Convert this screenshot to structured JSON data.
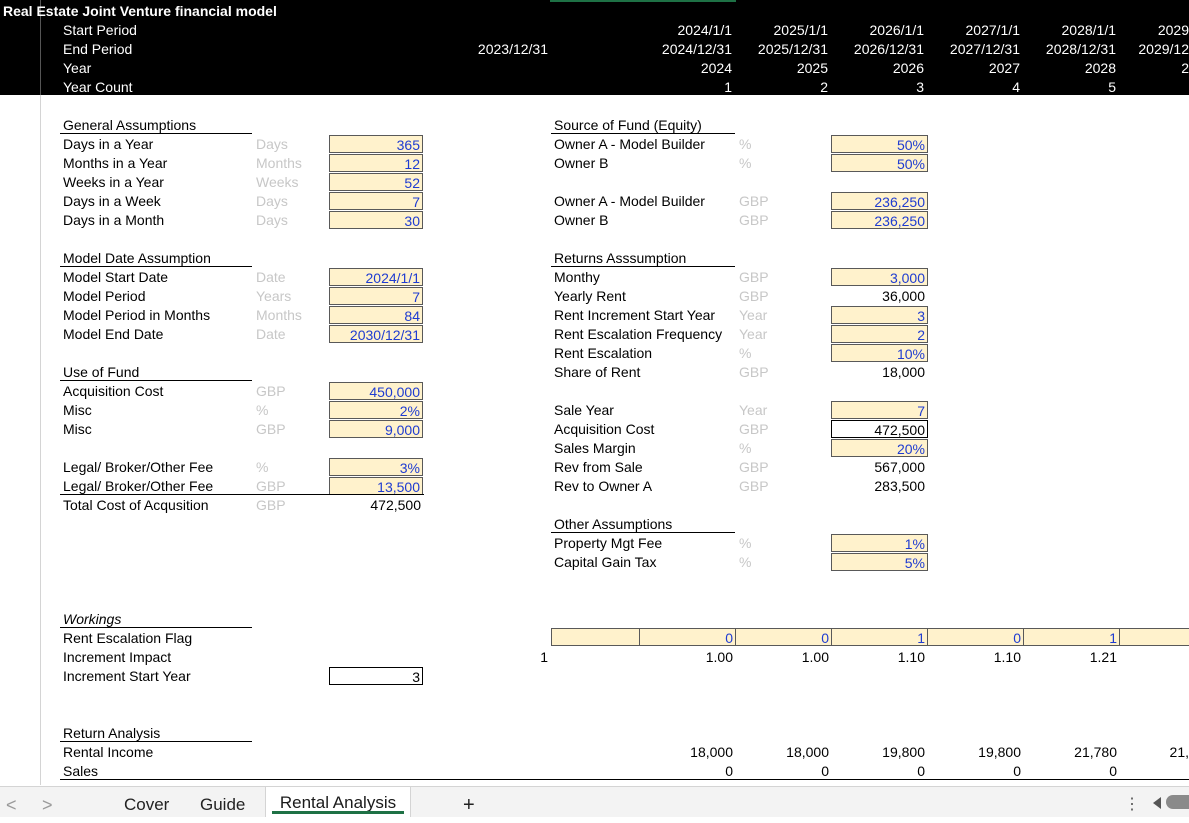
{
  "header": {
    "title": "Real Estate Joint Venture financial model",
    "row_labels": [
      "Start Period",
      "End Period",
      "Year",
      "Year Count"
    ],
    "prior_end": "2023/12/31",
    "columns": [
      {
        "start": "2024/1/1",
        "end": "2024/12/31",
        "year": "2024",
        "count": "1"
      },
      {
        "start": "2025/1/1",
        "end": "2025/12/31",
        "year": "2025",
        "count": "2"
      },
      {
        "start": "2026/1/1",
        "end": "2026/12/31",
        "year": "2026",
        "count": "3"
      },
      {
        "start": "2027/1/1",
        "end": "2027/12/31",
        "year": "2027",
        "count": "4"
      },
      {
        "start": "2028/1/1",
        "end": "2028/12/31",
        "year": "2028",
        "count": "5"
      },
      {
        "start": "2029",
        "end": "2029/12",
        "year": "2",
        "count": ""
      }
    ]
  },
  "general": {
    "title": "General Assumptions",
    "rows": [
      {
        "label": "Days in a Year",
        "unit": "Days",
        "value": "365"
      },
      {
        "label": "Months in a Year",
        "unit": "Months",
        "value": "12"
      },
      {
        "label": "Weeks in a Year",
        "unit": "Weeks",
        "value": "52"
      },
      {
        "label": "Days in a Week",
        "unit": "Days",
        "value": "7"
      },
      {
        "label": "Days in a Month",
        "unit": "Days",
        "value": "30"
      }
    ]
  },
  "model_date": {
    "title": "Model Date Assumption",
    "rows": [
      {
        "label": "Model Start Date",
        "unit": "Date",
        "value": "2024/1/1"
      },
      {
        "label": "Model Period",
        "unit": "Years",
        "value": "7"
      },
      {
        "label": "Model Period in Months",
        "unit": "Months",
        "value": "84"
      },
      {
        "label": "Model End Date",
        "unit": "Date",
        "value": "2030/12/31"
      }
    ]
  },
  "use_of_fund": {
    "title": "Use of Fund",
    "rows": [
      {
        "label": "Acquisition Cost",
        "unit": "GBP",
        "value": "450,000"
      },
      {
        "label": "Misc",
        "unit": "%",
        "value": "2%"
      },
      {
        "label": "Misc",
        "unit": "GBP",
        "value": "9,000"
      },
      {
        "label": "Legal/ Broker/Other Fee",
        "unit": "%",
        "value": "3%"
      },
      {
        "label": "Legal/ Broker/Other Fee",
        "unit": "GBP",
        "value": "13,500"
      },
      {
        "label": "Total Cost of Acqusition",
        "unit": "GBP",
        "value": "472,500"
      }
    ]
  },
  "source_of_fund": {
    "title": "Source of Fund (Equity)",
    "rows": [
      {
        "label": "Owner A - Model Builder",
        "unit": "%",
        "value": "50%"
      },
      {
        "label": "Owner B",
        "unit": "%",
        "value": "50%"
      },
      {
        "label": "Owner A - Model Builder",
        "unit": "GBP",
        "value": "236,250"
      },
      {
        "label": "Owner B",
        "unit": "GBP",
        "value": "236,250"
      }
    ]
  },
  "returns": {
    "title": "Returns Asssumption",
    "rows": [
      {
        "label": "Monthy",
        "unit": "GBP",
        "value": "3,000"
      },
      {
        "label": "Yearly Rent",
        "unit": "GBP",
        "value": "36,000"
      },
      {
        "label": "Rent Increment Start Year",
        "unit": "Year",
        "value": "3"
      },
      {
        "label": "Rent Escalation Frequency",
        "unit": "Year",
        "value": "2"
      },
      {
        "label": "Rent Escalation",
        "unit": "%",
        "value": "10%"
      },
      {
        "label": "Share of Rent",
        "unit": "GBP",
        "value": "18,000"
      },
      {
        "label": "Sale Year",
        "unit": "Year",
        "value": "7"
      },
      {
        "label": "Acquisition Cost",
        "unit": "GBP",
        "value": "472,500"
      },
      {
        "label": "Sales Margin",
        "unit": "%",
        "value": "20%"
      },
      {
        "label": "Rev from Sale",
        "unit": "GBP",
        "value": "567,000"
      },
      {
        "label": "Rev to Owner A",
        "unit": "GBP",
        "value": "283,500"
      }
    ]
  },
  "other": {
    "title": "Other Assumptions",
    "rows": [
      {
        "label": "Property Mgt Fee",
        "unit": "%",
        "value": "1%"
      },
      {
        "label": "Capital Gain Tax",
        "unit": "%",
        "value": "5%"
      }
    ]
  },
  "workings": {
    "title": "Workings",
    "rent_escalation_flag": {
      "label": "Rent Escalation Flag",
      "values": [
        "0",
        "0",
        "1",
        "0",
        "1"
      ]
    },
    "increment_impact": {
      "label": "Increment Impact",
      "prior": "1",
      "values": [
        "1.00",
        "1.00",
        "1.10",
        "1.10",
        "1.21"
      ]
    },
    "increment_start_year": {
      "label": "Increment Start Year",
      "value": "3"
    }
  },
  "return_analysis": {
    "title": "Return Analysis",
    "rental_income": {
      "label": "Rental Income",
      "values": [
        "18,000",
        "18,000",
        "19,800",
        "19,800",
        "21,780",
        "21,"
      ]
    },
    "sales": {
      "label": "Sales",
      "values": [
        "0",
        "0",
        "0",
        "0",
        "0",
        ""
      ]
    }
  },
  "tabs": {
    "prev": "<",
    "next": ">",
    "items": [
      "Cover",
      "Guide",
      "Rental Analysis"
    ],
    "active": "Rental Analysis",
    "add": "+",
    "more": "⋮"
  }
}
